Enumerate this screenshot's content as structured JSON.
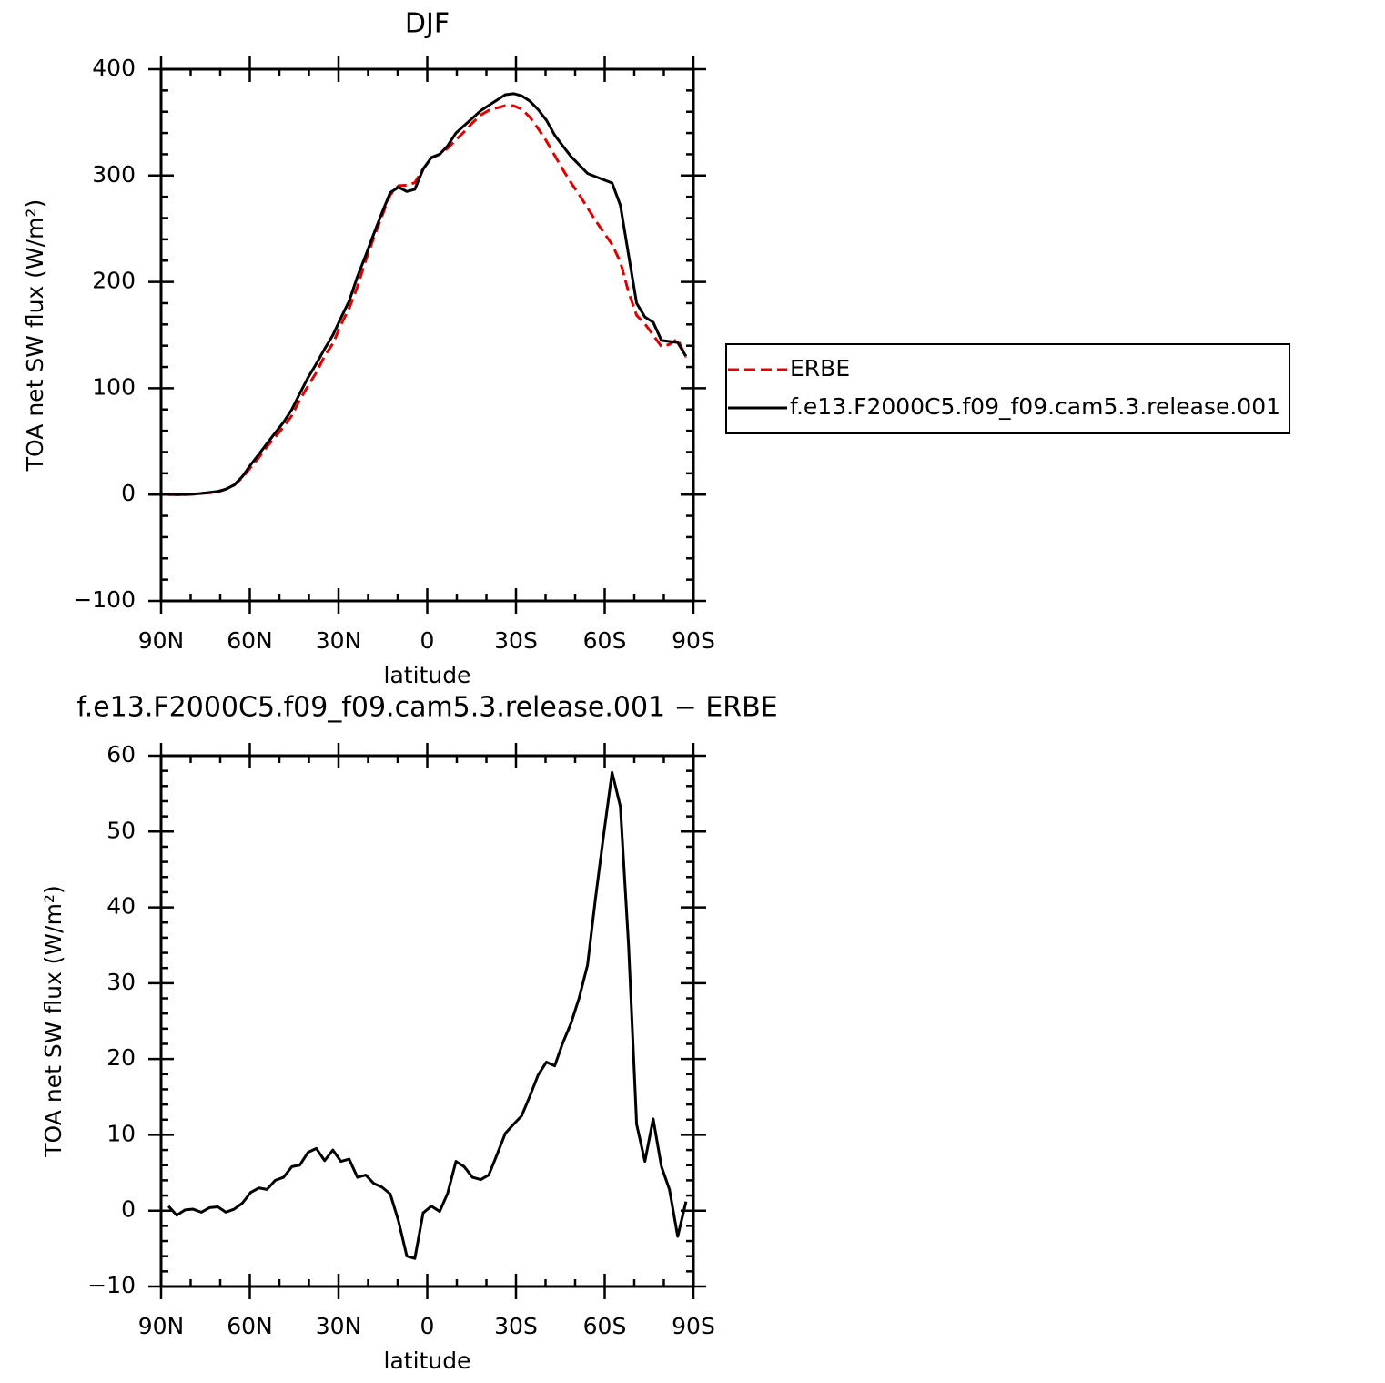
{
  "chart_data": [
    {
      "type": "line",
      "title": "DJF",
      "xlabel": "latitude",
      "ylabel": "TOA net SW flux (W/m²)",
      "legend": "right",
      "xlim": [
        90,
        -90
      ],
      "xticks": [
        {
          "value": 90,
          "label": "90N"
        },
        {
          "value": 60,
          "label": "60N"
        },
        {
          "value": 30,
          "label": "30N"
        },
        0,
        {
          "value": -30,
          "label": "30S"
        },
        {
          "value": -60,
          "label": "60S"
        },
        {
          "value": -90,
          "label": "90S"
        }
      ],
      "xminor": [
        80,
        70,
        50,
        40,
        20,
        10,
        -10,
        -20,
        -40,
        -50,
        -70,
        -80
      ],
      "ylim": [
        -100,
        400
      ],
      "yticks": [
        {
          "value": -100,
          "label": "−100"
        },
        0,
        100,
        200,
        300,
        400
      ],
      "yminor": [
        -80,
        -60,
        -40,
        -20,
        20,
        40,
        60,
        80,
        120,
        140,
        160,
        180,
        220,
        240,
        260,
        280,
        320,
        340,
        360,
        380
      ],
      "x": [
        87.5,
        84.7,
        81.9,
        79.2,
        76.4,
        73.6,
        70.8,
        68.1,
        65.3,
        62.5,
        59.7,
        56.9,
        54.2,
        51.4,
        48.6,
        45.8,
        43.1,
        40.3,
        37.5,
        34.7,
        31.9,
        29.2,
        26.4,
        23.6,
        20.8,
        18.1,
        15.3,
        12.5,
        9.7,
        6.9,
        4.2,
        1.4,
        -1.4,
        -4.2,
        -6.9,
        -9.7,
        -12.5,
        -15.3,
        -18.1,
        -20.8,
        -23.6,
        -26.4,
        -29.2,
        -31.9,
        -34.7,
        -37.5,
        -40.3,
        -43.1,
        -45.8,
        -48.6,
        -51.4,
        -54.2,
        -56.9,
        -59.7,
        -62.5,
        -65.3,
        -68.1,
        -70.8,
        -73.6,
        -76.4,
        -79.2,
        -81.9,
        -84.7,
        -87.5
      ],
      "series": [
        {
          "name": "ERBE",
          "color": "#e00000",
          "dashed": true,
          "values": [
            0,
            0,
            0,
            0.3,
            1.2,
            1.6,
            2.5,
            5.2,
            8.8,
            16,
            25.6,
            35,
            45.2,
            54,
            63.6,
            74.2,
            89,
            102.3,
            114.8,
            130.4,
            142,
            159.5,
            175.2,
            195.6,
            220.3,
            241.4,
            262,
            282,
            290.4,
            291,
            293.3,
            306.3,
            316.4,
            320.1,
            325.7,
            333.5,
            341.2,
            349.6,
            356.9,
            361.3,
            363.6,
            365.8,
            365.6,
            362.5,
            354.9,
            344.1,
            332.4,
            318.9,
            305.9,
            293.3,
            281.9,
            269.6,
            257.8,
            246.3,
            235.2,
            218.7,
            190.2,
            168.6,
            160.5,
            149.9,
            139.2,
            141.2,
            146.4,
            128.8
          ]
        },
        {
          "name": "f.e13.F2000C5.f09_f09.cam5.3.release.001",
          "color": "#000000",
          "dashed": false,
          "values": [
            0.6,
            0,
            0.1,
            0.5,
            1,
            2,
            3,
            5,
            9,
            17,
            28,
            38,
            48,
            58,
            68,
            80,
            95,
            110,
            123,
            137,
            150,
            166,
            182,
            205,
            225,
            245,
            265,
            284,
            289,
            285,
            287,
            306,
            317,
            320,
            328,
            340,
            347,
            354,
            361,
            366,
            371,
            376,
            377,
            375,
            370,
            362,
            352,
            338,
            328,
            318,
            310,
            302,
            299,
            296,
            293,
            272,
            225,
            180,
            167,
            162,
            145,
            144,
            143,
            130
          ]
        }
      ]
    },
    {
      "type": "line",
      "title": "f.e13.F2000C5.f09_f09.cam5.3.release.001 − ERBE",
      "xlabel": "latitude",
      "ylabel": "TOA net SW flux (W/m²)",
      "xlim": [
        90,
        -90
      ],
      "xticks": [
        {
          "value": 90,
          "label": "90N"
        },
        {
          "value": 60,
          "label": "60N"
        },
        {
          "value": 30,
          "label": "30N"
        },
        0,
        {
          "value": -30,
          "label": "30S"
        },
        {
          "value": -60,
          "label": "60S"
        },
        {
          "value": -90,
          "label": "90S"
        }
      ],
      "xminor": [
        80,
        70,
        50,
        40,
        20,
        10,
        -10,
        -20,
        -40,
        -50,
        -70,
        -80
      ],
      "ylim": [
        -10,
        60
      ],
      "yticks": [
        {
          "value": -10,
          "label": "−10"
        },
        0,
        10,
        20,
        30,
        40,
        50,
        60
      ],
      "yminor": [
        -8,
        -6,
        -4,
        -2,
        2,
        4,
        6,
        8,
        12,
        14,
        16,
        18,
        22,
        24,
        26,
        28,
        32,
        34,
        36,
        38,
        42,
        44,
        46,
        48,
        52,
        54,
        56,
        58
      ],
      "x": [
        87.5,
        84.7,
        81.9,
        79.2,
        76.4,
        73.6,
        70.8,
        68.1,
        65.3,
        62.5,
        59.7,
        56.9,
        54.2,
        51.4,
        48.6,
        45.8,
        43.1,
        40.3,
        37.5,
        34.7,
        31.9,
        29.2,
        26.4,
        23.6,
        20.8,
        18.1,
        15.3,
        12.5,
        9.7,
        6.9,
        4.2,
        1.4,
        -1.4,
        -4.2,
        -6.9,
        -9.7,
        -12.5,
        -15.3,
        -18.1,
        -20.8,
        -23.6,
        -26.4,
        -29.2,
        -31.9,
        -34.7,
        -37.5,
        -40.3,
        -43.1,
        -45.8,
        -48.6,
        -51.4,
        -54.2,
        -56.9,
        -59.7,
        -62.5,
        -65.3,
        -68.1,
        -70.8,
        -73.6,
        -76.4,
        -79.2,
        -81.9,
        -84.7,
        -87.5
      ],
      "series": [
        {
          "color": "#000000",
          "dashed": false,
          "values": [
            0.6,
            -0.6,
            0.1,
            0.2,
            -0.2,
            0.4,
            0.5,
            -0.2,
            0.2,
            1,
            2.4,
            3,
            2.8,
            4,
            4.4,
            5.8,
            6,
            7.7,
            8.2,
            6.6,
            8,
            6.5,
            6.8,
            4.4,
            4.7,
            3.6,
            3.1,
            2.2,
            -1.4,
            -6,
            -6.3,
            -0.3,
            0.6,
            -0.1,
            2.3,
            6.5,
            5.8,
            4.4,
            4.1,
            4.7,
            7.4,
            10.2,
            11.4,
            12.5,
            15.1,
            17.9,
            19.6,
            19.1,
            22.1,
            24.7,
            28.1,
            32.4,
            41.2,
            49.7,
            57.8,
            53.3,
            34.8,
            11.4,
            6.5,
            12.1,
            5.8,
            2.8,
            -3.4,
            1.2
          ]
        }
      ]
    }
  ]
}
